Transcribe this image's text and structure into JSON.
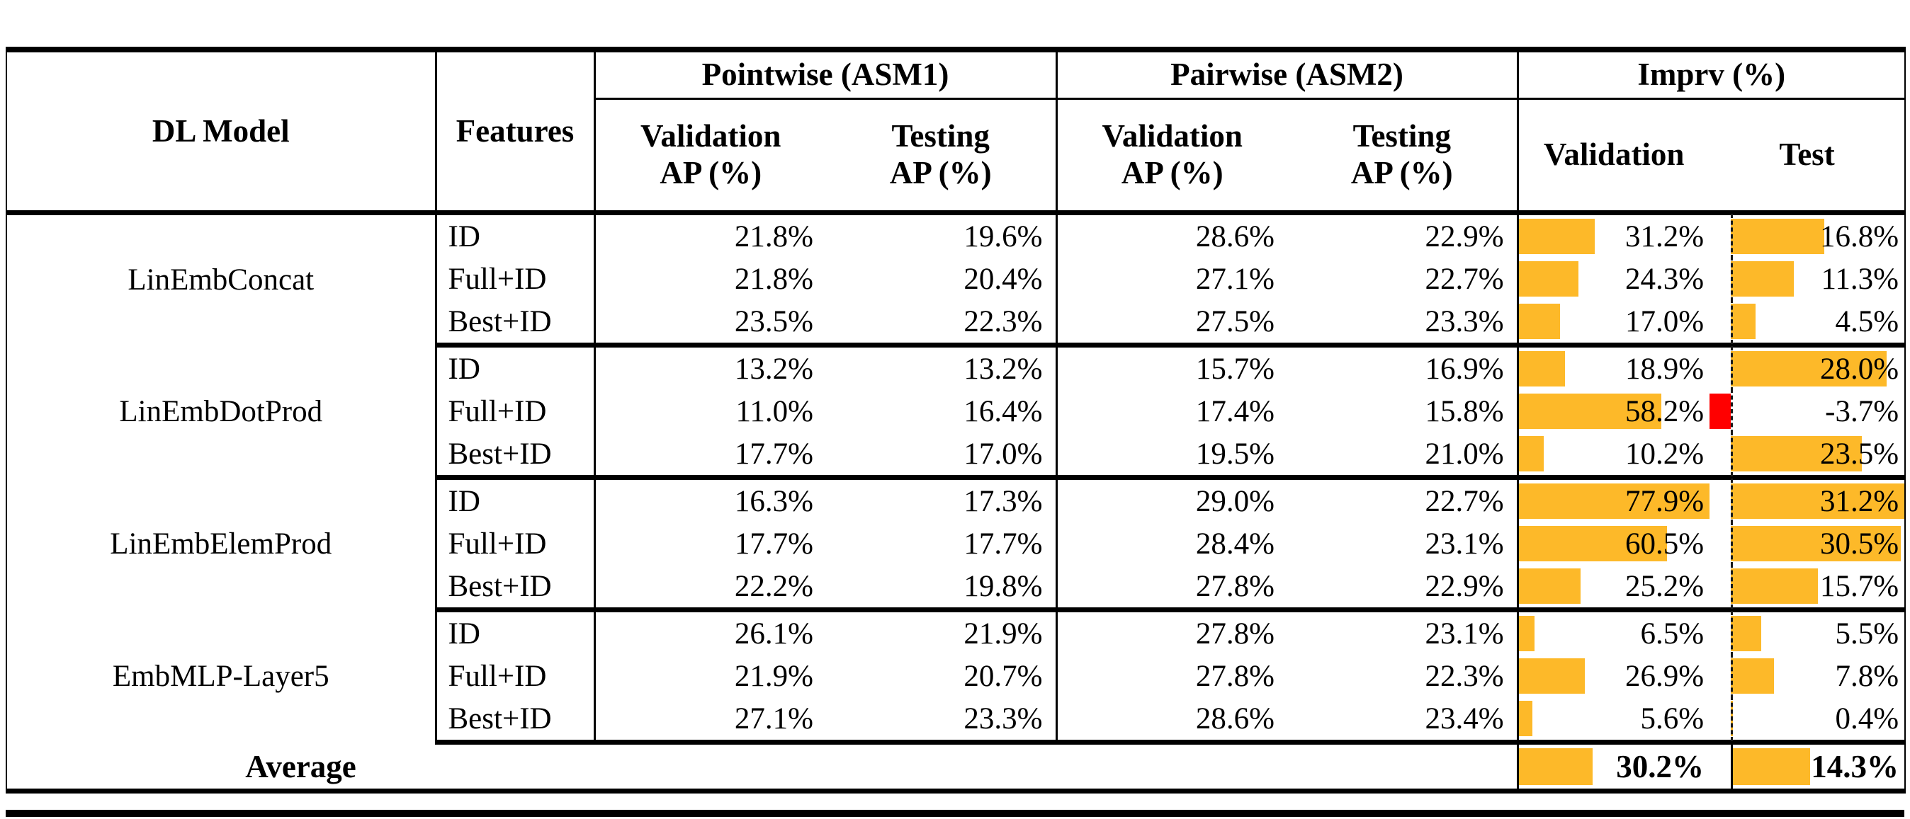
{
  "table": {
    "headers": {
      "model": "DL Model",
      "features": "Features",
      "pointwise": {
        "label": "Pointwise (ASM1)",
        "sub1": "Validation\nAP (%)",
        "sub2": "Testing\nAP (%)"
      },
      "pairwise": {
        "label": "Pairwise (ASM2)",
        "sub1": "Validation\nAP (%)",
        "sub2": "Testing\nAP (%)"
      },
      "imprv": {
        "label": "Imprv (%)",
        "sub1": "Validation",
        "sub2": "Test"
      }
    },
    "groups": [
      {
        "model": "LinEmbConcat",
        "rows": [
          {
            "features": "ID",
            "pw_val": "21.8%",
            "pw_test": "19.6%",
            "pr_val": "28.6%",
            "pr_test": "22.9%",
            "imp_val": {
              "text": "31.2%",
              "value": 31.2
            },
            "imp_test": {
              "text": "16.8%",
              "value": 16.8
            }
          },
          {
            "features": "Full+ID",
            "pw_val": "21.8%",
            "pw_test": "20.4%",
            "pr_val": "27.1%",
            "pr_test": "22.7%",
            "imp_val": {
              "text": "24.3%",
              "value": 24.3
            },
            "imp_test": {
              "text": "11.3%",
              "value": 11.3
            }
          },
          {
            "features": "Best+ID",
            "pw_val": "23.5%",
            "pw_test": "22.3%",
            "pr_val": "27.5%",
            "pr_test": "23.3%",
            "imp_val": {
              "text": "17.0%",
              "value": 17.0
            },
            "imp_test": {
              "text": "4.5%",
              "value": 4.5
            }
          }
        ]
      },
      {
        "model": "LinEmbDotProd",
        "rows": [
          {
            "features": "ID",
            "pw_val": "13.2%",
            "pw_test": "13.2%",
            "pr_val": "15.7%",
            "pr_test": "16.9%",
            "imp_val": {
              "text": "18.9%",
              "value": 18.9
            },
            "imp_test": {
              "text": "28.0%",
              "value": 28.0
            }
          },
          {
            "features": "Full+ID",
            "pw_val": "11.0%",
            "pw_test": "16.4%",
            "pr_val": "17.4%",
            "pr_test": "15.8%",
            "imp_val": {
              "text": "58.2%",
              "value": 58.2
            },
            "imp_test": {
              "text": "-3.7%",
              "value": -3.7
            }
          },
          {
            "features": "Best+ID",
            "pw_val": "17.7%",
            "pw_test": "17.0%",
            "pr_val": "19.5%",
            "pr_test": "21.0%",
            "imp_val": {
              "text": "10.2%",
              "value": 10.2
            },
            "imp_test": {
              "text": "23.5%",
              "value": 23.5
            }
          }
        ]
      },
      {
        "model": "LinEmbElemProd",
        "rows": [
          {
            "features": "ID",
            "pw_val": "16.3%",
            "pw_test": "17.3%",
            "pr_val": "29.0%",
            "pr_test": "22.7%",
            "imp_val": {
              "text": "77.9%",
              "value": 77.9
            },
            "imp_test": {
              "text": "31.2%",
              "value": 31.2
            }
          },
          {
            "features": "Full+ID",
            "pw_val": "17.7%",
            "pw_test": "17.7%",
            "pr_val": "28.4%",
            "pr_test": "23.1%",
            "imp_val": {
              "text": "60.5%",
              "value": 60.5
            },
            "imp_test": {
              "text": "30.5%",
              "value": 30.5
            }
          },
          {
            "features": "Best+ID",
            "pw_val": "22.2%",
            "pw_test": "19.8%",
            "pr_val": "27.8%",
            "pr_test": "22.9%",
            "imp_val": {
              "text": "25.2%",
              "value": 25.2
            },
            "imp_test": {
              "text": "15.7%",
              "value": 15.7
            }
          }
        ]
      },
      {
        "model": "EmbMLP-Layer5",
        "rows": [
          {
            "features": "ID",
            "pw_val": "26.1%",
            "pw_test": "21.9%",
            "pr_val": "27.8%",
            "pr_test": "23.1%",
            "imp_val": {
              "text": "6.5%",
              "value": 6.5
            },
            "imp_test": {
              "text": "5.5%",
              "value": 5.5
            }
          },
          {
            "features": "Full+ID",
            "pw_val": "21.9%",
            "pw_test": "20.7%",
            "pr_val": "27.8%",
            "pr_test": "22.3%",
            "imp_val": {
              "text": "26.9%",
              "value": 26.9
            },
            "imp_test": {
              "text": "7.8%",
              "value": 7.8
            }
          },
          {
            "features": "Best+ID",
            "pw_val": "27.1%",
            "pw_test": "23.3%",
            "pr_val": "28.6%",
            "pr_test": "23.4%",
            "imp_val": {
              "text": "5.6%",
              "value": 5.6
            },
            "imp_test": {
              "text": "0.4%",
              "value": 0.4
            }
          }
        ]
      }
    ],
    "average": {
      "label": "Average",
      "imp_val": {
        "text": "30.2%",
        "value": 30.2
      },
      "imp_test": {
        "text": "14.3%",
        "value": 14.3
      }
    }
  },
  "bars": {
    "validation_scale_max": 77.9,
    "test_scale_max": 31.2,
    "test_axis_fraction": 0.1087,
    "positive_color": "#fdb929",
    "negative_color": "#ff0000"
  }
}
